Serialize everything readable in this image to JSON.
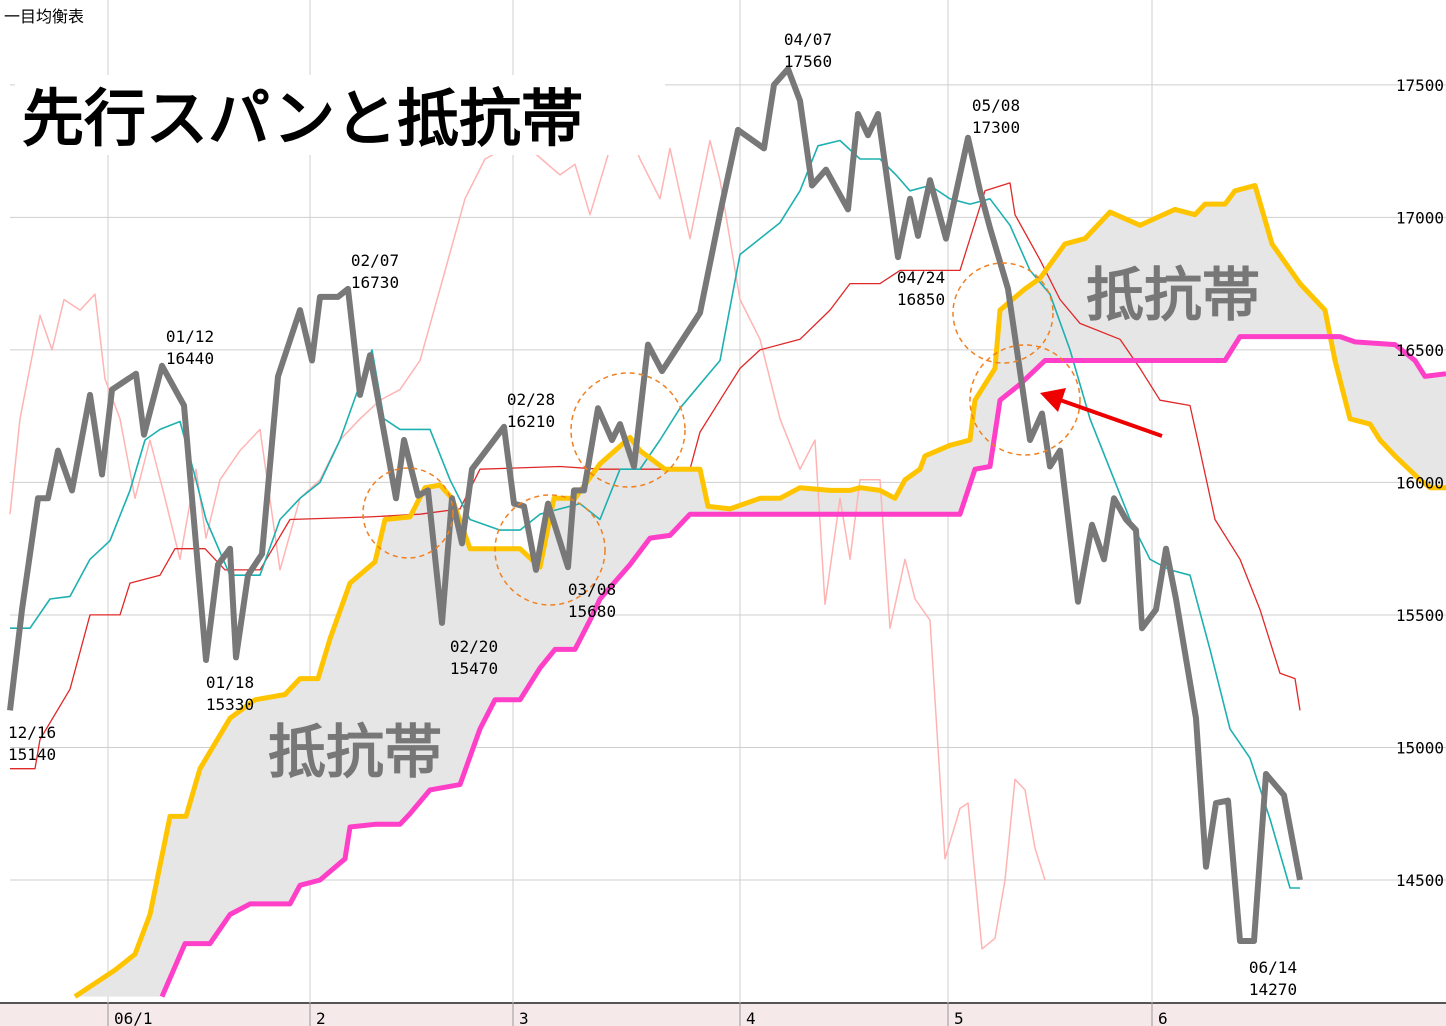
{
  "chart_data": {
    "type": "line",
    "header": "一目均衡表",
    "title": "先行スパンと抵抗帯",
    "zone_labels": [
      "抵抗帯",
      "抵抗帯"
    ],
    "xlim": [
      0,
      143.6
    ],
    "xticks": [
      {
        "value": 9.8,
        "label": "06/1"
      },
      {
        "value": 30,
        "label": "2"
      },
      {
        "value": 50.3,
        "label": "3"
      },
      {
        "value": 73,
        "label": "4"
      },
      {
        "value": 93.8,
        "label": "5"
      },
      {
        "value": 114.2,
        "label": "6"
      }
    ],
    "ylim": [
      14036,
      17820
    ],
    "yticks": [
      14500,
      15000,
      15500,
      16000,
      16500,
      17000,
      17500
    ],
    "grid": true,
    "cloud_color": "#e6e6e6",
    "series": [
      {
        "color": "#ffb4b4",
        "x": [
          0,
          1,
          3,
          4.2,
          5.4,
          7,
          8.5,
          9.5,
          11,
          12.5,
          14,
          15.5,
          17,
          18.6,
          19.6,
          21,
          23,
          25,
          27,
          29,
          31,
          33,
          35,
          37,
          39,
          41,
          43,
          45.5,
          47.5,
          51,
          55,
          56.5,
          58,
          60,
          61,
          63,
          65,
          66,
          68,
          70,
          71,
          73,
          75,
          77,
          79,
          80.5,
          81.5,
          83,
          84,
          85,
          87,
          88,
          89.5,
          90.5,
          92,
          93.5,
          95,
          95.8,
          97.2,
          98.5,
          99.5,
          100.5,
          101.5,
          102.5,
          103.5
        ],
        "values": [
          15880,
          16240,
          16630,
          16500,
          16690,
          16650,
          16710,
          16390,
          16240,
          15940,
          16160,
          15940,
          15710,
          16050,
          15790,
          16010,
          16120,
          16200,
          15670,
          15940,
          16010,
          16160,
          16240,
          16310,
          16350,
          16460,
          16730,
          17070,
          17220,
          17290,
          17160,
          17200,
          17010,
          17260,
          17410,
          17220,
          17070,
          17260,
          16920,
          17290,
          17140,
          16690,
          16540,
          16240,
          16050,
          16160,
          15540,
          15940,
          15710,
          16010,
          16010,
          15450,
          15710,
          15560,
          15480,
          14580,
          14770,
          14790,
          14240,
          14280,
          14500,
          14880,
          14840,
          14620,
          14500
        ]
      },
      {
        "color": "#e02828",
        "x": [
          0,
          2.5,
          3,
          6,
          8,
          11,
          12,
          15,
          16.5,
          19.5,
          21.5,
          25,
          28,
          36,
          41,
          45,
          47,
          55,
          59,
          68,
          69,
          71,
          73,
          75,
          79,
          82,
          84,
          87,
          89,
          95,
          97.5,
          100,
          100.5,
          103,
          105,
          107,
          111,
          113,
          115,
          118,
          119,
          120.5,
          123,
          125,
          127,
          128.5,
          129
        ],
        "values": [
          14920,
          14920,
          15030,
          15220,
          15500,
          15500,
          15620,
          15650,
          15750,
          15750,
          15670,
          15670,
          15860,
          15870,
          15880,
          15900,
          16050,
          16060,
          16050,
          16050,
          16190,
          16310,
          16430,
          16500,
          16540,
          16650,
          16750,
          16750,
          16800,
          16800,
          17100,
          17130,
          17010,
          16840,
          16690,
          16600,
          16540,
          16430,
          16310,
          16290,
          16120,
          15860,
          15710,
          15520,
          15280,
          15260,
          15140
        ]
      },
      {
        "color": "#1eb0b0",
        "x": [
          0,
          2,
          4,
          6,
          8,
          10,
          12,
          13.5,
          15,
          17,
          18.6,
          19.6,
          22,
          25,
          27,
          29,
          31,
          33,
          34.8,
          36.2,
          37.4,
          39,
          42,
          44,
          46,
          49,
          51,
          53,
          55,
          57,
          59,
          61,
          63,
          65,
          67,
          69,
          71,
          73,
          75,
          77,
          79,
          80.8,
          83,
          85,
          87,
          88.6,
          90,
          92,
          94,
          96,
          98,
          100,
          102,
          104,
          106,
          108,
          110,
          112,
          114,
          116,
          118,
          120,
          122,
          124,
          126,
          128,
          129
        ],
        "values": [
          15450,
          15450,
          15560,
          15570,
          15710,
          15780,
          15970,
          16160,
          16200,
          16230,
          16010,
          15860,
          15650,
          15650,
          15860,
          15940,
          16000,
          16160,
          16350,
          16500,
          16240,
          16200,
          16200,
          16010,
          15860,
          15820,
          15820,
          15880,
          15900,
          15920,
          15860,
          16050,
          16050,
          16160,
          16280,
          16370,
          16460,
          16860,
          16920,
          16980,
          17100,
          17270,
          17290,
          17220,
          17220,
          17160,
          17100,
          17120,
          17070,
          17050,
          17070,
          16970,
          16800,
          16710,
          16500,
          16240,
          16050,
          15860,
          15710,
          15670,
          15650,
          15370,
          15070,
          14960,
          14730,
          14470,
          14470
        ]
      },
      {
        "color": "#ffc400",
        "x": [
          6.5,
          10.5,
          12.5,
          14,
          16,
          17.6,
          19,
          22,
          24.5,
          27.5,
          29,
          30.8,
          32,
          34,
          36.5,
          37.5,
          40,
          41.5,
          43,
          44.2,
          46,
          51,
          53,
          54.4,
          56.5,
          59,
          62,
          63,
          65.5,
          69,
          69.8,
          72,
          75,
          77,
          79,
          82,
          84,
          85,
          87,
          88.5,
          89.5,
          91,
          91.5,
          94,
          96,
          96.5,
          98.5,
          99,
          101.5,
          103,
          105.5,
          107.5,
          110,
          113,
          116.5,
          118.5,
          119.5,
          121.5,
          122.5,
          124.5,
          126.2,
          129,
          131.5,
          132.5,
          134,
          136,
          137,
          138.5,
          141,
          142,
          143.6
        ],
        "values": [
          14060,
          14160,
          14220,
          14370,
          14740,
          14740,
          14920,
          15110,
          15180,
          15200,
          15260,
          15260,
          15410,
          15620,
          15700,
          15860,
          15870,
          15980,
          15990,
          15940,
          15750,
          15750,
          15680,
          15940,
          15940,
          16070,
          16170,
          16120,
          16050,
          16050,
          15910,
          15900,
          15940,
          15940,
          15980,
          15970,
          15970,
          15980,
          15970,
          15940,
          16010,
          16050,
          16100,
          16140,
          16160,
          16310,
          16430,
          16650,
          16730,
          16770,
          16900,
          16920,
          17020,
          16970,
          17030,
          17010,
          17050,
          17050,
          17100,
          17120,
          16900,
          16750,
          16650,
          16460,
          16240,
          16220,
          16160,
          16100,
          16010,
          15980,
          15980
        ]
      },
      {
        "color": "#ff3fc8",
        "x": [
          15.2,
          17.5,
          20,
          22,
          24,
          28,
          29,
          31,
          33.5,
          34,
          36.5,
          39,
          40,
          42,
          45,
          47,
          48.5,
          51,
          53,
          54.5,
          56.5,
          58,
          59,
          62,
          64,
          66,
          68,
          95,
          96.5,
          98,
          99,
          101,
          103.5,
          121.5,
          123,
          133,
          134.5,
          138.5,
          140.5,
          141.5,
          143.6
        ],
        "values": [
          14060,
          14260,
          14260,
          14370,
          14410,
          14410,
          14480,
          14500,
          14580,
          14700,
          14710,
          14710,
          14750,
          14840,
          14860,
          15070,
          15180,
          15180,
          15300,
          15370,
          15370,
          15480,
          15560,
          15690,
          15790,
          15800,
          15880,
          15880,
          16050,
          16060,
          16310,
          16370,
          16460,
          16460,
          16550,
          16550,
          16530,
          16520,
          16460,
          16400,
          16410
        ]
      },
      {
        "color": "#787878",
        "x": [
          0,
          1.2,
          2.8,
          3.8,
          4.8,
          6.2,
          8,
          9.2,
          10.2,
          12.6,
          13.4,
          15.2,
          17.4,
          19.6,
          20.8,
          22,
          22.6,
          23.8,
          25.2,
          26.8,
          29,
          30.2,
          31,
          32.8,
          33.8,
          35,
          36,
          38.6,
          39.4,
          40.8,
          41.8,
          43.2,
          44.2,
          45.2,
          46.2,
          49.4,
          50.4,
          51.4,
          52.6,
          53.8,
          55.8,
          56.4,
          57.4,
          58.8,
          60.2,
          61,
          62.4,
          63.8,
          65.2,
          69,
          71.2,
          72.8,
          75.4,
          76.4,
          77.8,
          79,
          80.2,
          81.6,
          83.8,
          84.8,
          85.8,
          86.8,
          88.8,
          90,
          90.8,
          92,
          93.6,
          95.8,
          97,
          98,
          99.8,
          102,
          103.2,
          104,
          105,
          106.8,
          108.2,
          109.4,
          110.4,
          111.6,
          112.6,
          113.2,
          114.6,
          115.6,
          116.6,
          118.6,
          119.6,
          120.6,
          121.8,
          123,
          124.4,
          125.6,
          127.4,
          129
        ],
        "values": [
          15140,
          15520,
          15940,
          15940,
          16120,
          15970,
          16330,
          16030,
          16350,
          16410,
          16180,
          16440,
          16290,
          15330,
          15690,
          15750,
          15340,
          15650,
          15730,
          16400,
          16650,
          16460,
          16700,
          16700,
          16730,
          16330,
          16480,
          15940,
          16160,
          15950,
          15970,
          15470,
          15940,
          15770,
          16050,
          16210,
          15920,
          15910,
          15670,
          15920,
          15680,
          15970,
          15970,
          16280,
          16160,
          16220,
          16060,
          16520,
          16420,
          16640,
          17050,
          17330,
          17260,
          17500,
          17560,
          17440,
          17120,
          17180,
          17030,
          17390,
          17310,
          17390,
          16850,
          17070,
          16930,
          17140,
          16920,
          17300,
          17100,
          16960,
          16730,
          16160,
          16260,
          16060,
          16120,
          15550,
          15840,
          15710,
          15940,
          15860,
          15820,
          15450,
          15520,
          15750,
          15560,
          15110,
          14550,
          14790,
          14800,
          14270,
          14270,
          14900,
          14820,
          14500
        ]
      }
    ],
    "annotations": [
      {
        "label": "12/16",
        "value": 15140
      },
      {
        "label": "01/12",
        "value": 16440
      },
      {
        "label": "01/18",
        "value": 15330
      },
      {
        "label": "02/07",
        "value": 16730
      },
      {
        "label": "02/20",
        "value": 15470
      },
      {
        "label": "02/28",
        "value": 16210
      },
      {
        "label": "03/08",
        "value": 15680
      },
      {
        "label": "04/07",
        "value": 17560
      },
      {
        "label": "04/24",
        "value": 16850
      },
      {
        "label": "05/08",
        "value": 17300
      },
      {
        "label": "06/14",
        "value": 14270
      }
    ]
  }
}
